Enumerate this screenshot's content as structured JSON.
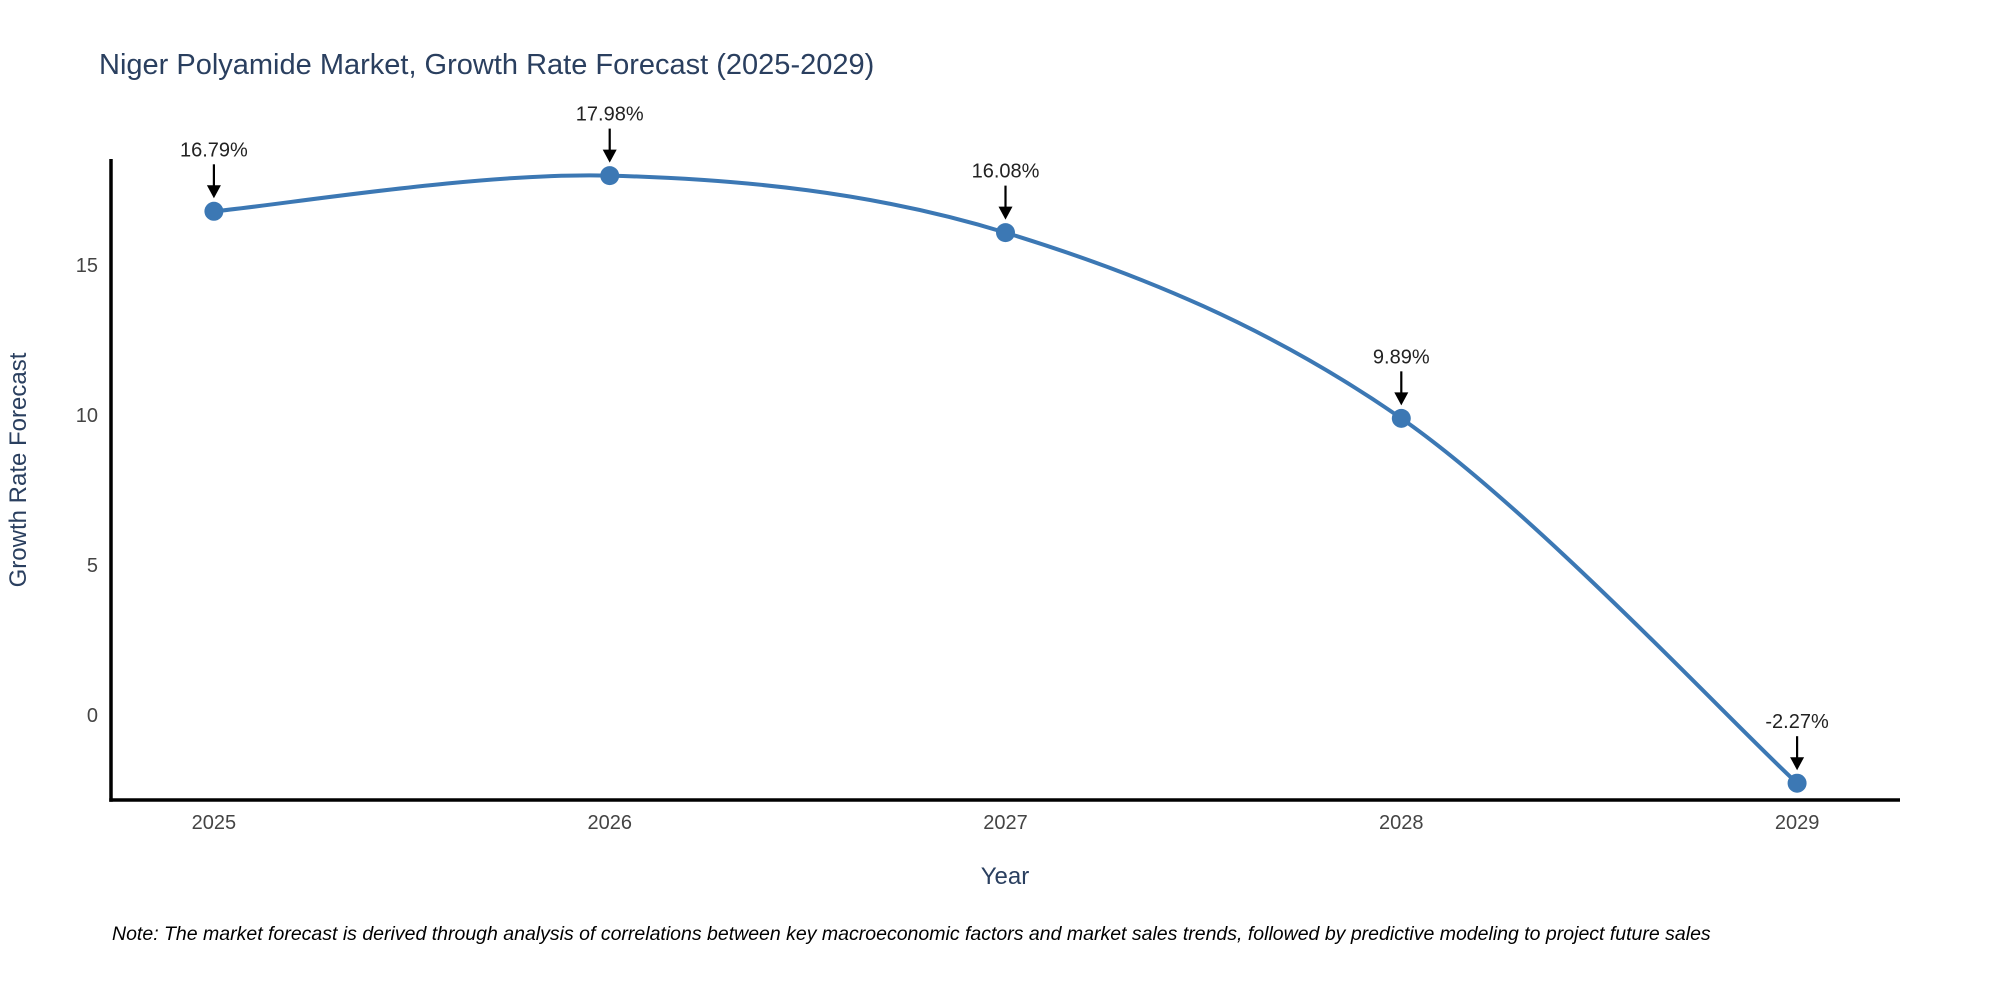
{
  "title": "Niger Polyamide Market, Growth Rate Forecast (2025-2029)",
  "note": "Note: The market forecast is derived through analysis of correlations between key macroeconomic factors and market sales trends, followed by predictive modeling to project future sales",
  "chart_data": {
    "type": "line",
    "title": "Niger Polyamide Market, Growth Rate Forecast (2025-2029)",
    "xlabel": "Year",
    "ylabel": "Growth Rate Forecast",
    "x": [
      2025,
      2026,
      2027,
      2028,
      2029
    ],
    "values": [
      16.79,
      17.98,
      16.08,
      9.89,
      -2.27
    ],
    "point_labels": [
      "16.79%",
      "17.98%",
      "16.08%",
      "9.89%",
      "-2.27%"
    ],
    "yticks": [
      0,
      5,
      10,
      15
    ],
    "xticks": [
      "2025",
      "2026",
      "2027",
      "2028",
      "2029"
    ],
    "ylim": [
      -2.83,
      18.5
    ],
    "xlim": [
      2024.74,
      2029.26
    ],
    "smooth": true,
    "grid": false,
    "legend": "none",
    "line_color": "#3c78b4",
    "marker_color": "#3c78b4",
    "annotation_arrow_color": "#000000"
  },
  "colors": {
    "background": "#ffffff",
    "title_text": "#2a3f5f",
    "axis_title_text": "#2a3f5f",
    "tick_text": "#444444",
    "axis_line": "#000000",
    "note_text": "#000000"
  }
}
